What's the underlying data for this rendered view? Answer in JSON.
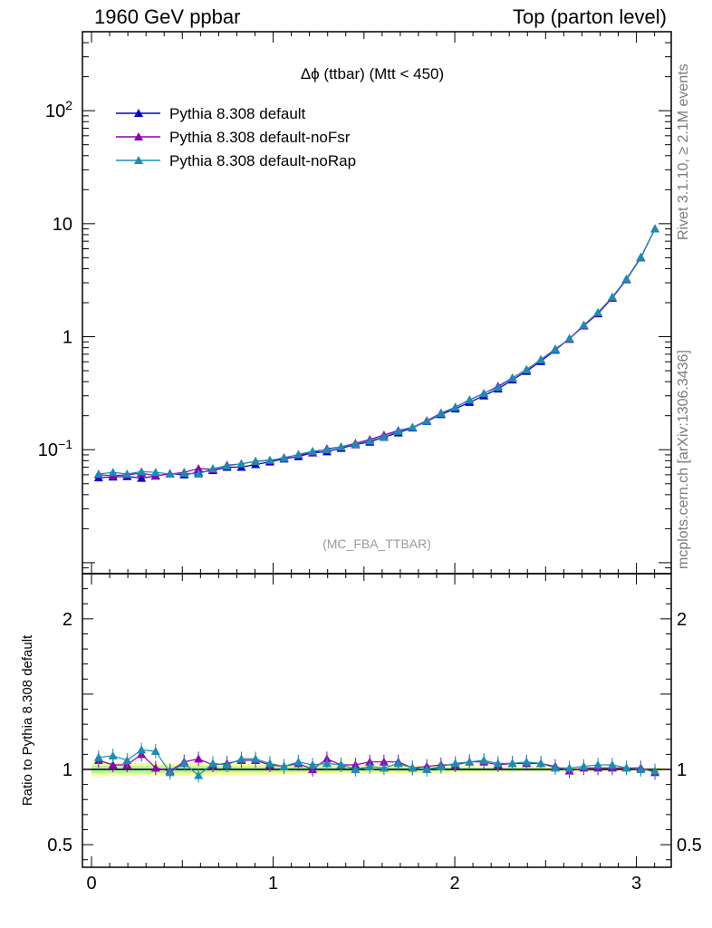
{
  "header": {
    "left": "1960 GeV ppbar",
    "right": "Top (parton level)"
  },
  "side": {
    "rivet": "Rivet 3.1.10, ≥ 2.1M events",
    "mcplots": "mcplots.cern.ch [arXiv:1306.3436]"
  },
  "chart_data": {
    "type": "line",
    "title": "Δϕ (ttbar) (Mtt < 450)",
    "watermark": "(MC_FBA_TTBAR)",
    "ratio_ylabel": "Ratio to Pythia 8.308 default",
    "x": [
      0.039,
      0.118,
      0.196,
      0.275,
      0.353,
      0.432,
      0.51,
      0.589,
      0.668,
      0.746,
      0.825,
      0.903,
      0.982,
      1.06,
      1.139,
      1.217,
      1.296,
      1.374,
      1.453,
      1.532,
      1.61,
      1.689,
      1.767,
      1.846,
      1.924,
      2.003,
      2.081,
      2.16,
      2.238,
      2.317,
      2.395,
      2.474,
      2.553,
      2.631,
      2.71,
      2.788,
      2.867,
      2.945,
      3.024,
      3.102
    ],
    "xlim": [
      -0.05,
      3.1916
    ],
    "ylim": [
      0.008,
      500
    ],
    "yscale": "log",
    "ratio_ylim": [
      0.35,
      2.3
    ],
    "x_ticks": [
      "0",
      "1",
      "2",
      "3"
    ],
    "y_ticks": [
      {
        "base": "10",
        "exp": "−1",
        "v": 0.1
      },
      {
        "base": "1",
        "exp": "",
        "v": 1
      },
      {
        "base": "10",
        "exp": "",
        "v": 10
      },
      {
        "base": "10",
        "exp": "2",
        "v": 100
      }
    ],
    "ratio_ticks": [
      "0.5",
      "1",
      "2"
    ],
    "series": [
      {
        "name": "Pythia 8.308 default",
        "color": "#0000cc",
        "values": [
          0.0565,
          0.0575,
          0.058,
          0.056,
          0.0585,
          0.0615,
          0.06,
          0.063,
          0.0655,
          0.07,
          0.07,
          0.074,
          0.078,
          0.083,
          0.087,
          0.094,
          0.096,
          0.103,
          0.111,
          0.117,
          0.129,
          0.141,
          0.156,
          0.178,
          0.205,
          0.23,
          0.263,
          0.3,
          0.345,
          0.415,
          0.495,
          0.605,
          0.76,
          0.96,
          1.25,
          1.6,
          2.2,
          3.2,
          5.0,
          9.0
        ],
        "ratio": [
          1.0,
          1.0,
          1.0,
          1.0,
          1.0,
          1.0,
          1.0,
          1.0,
          1.0,
          1.0,
          1.0,
          1.0,
          1.0,
          1.0,
          1.0,
          1.0,
          1.0,
          1.0,
          1.0,
          1.0,
          1.0,
          1.0,
          1.0,
          1.0,
          1.0,
          1.0,
          1.0,
          1.0,
          1.0,
          1.0,
          1.0,
          1.0,
          1.0,
          1.0,
          1.0,
          1.0,
          1.0,
          1.0,
          1.0,
          1.0
        ]
      },
      {
        "name": "Pythia 8.308 default-noFsr",
        "color": "#8b00b2",
        "values": [
          0.06,
          0.059,
          0.06,
          0.062,
          0.059,
          0.061,
          0.063,
          0.068,
          0.067,
          0.073,
          0.075,
          0.079,
          0.08,
          0.085,
          0.09,
          0.094,
          0.102,
          0.106,
          0.114,
          0.123,
          0.135,
          0.148,
          0.158,
          0.181,
          0.211,
          0.238,
          0.276,
          0.315,
          0.365,
          0.432,
          0.512,
          0.628,
          0.778,
          0.95,
          1.26,
          1.62,
          2.23,
          3.23,
          5.05,
          9.0
        ],
        "ratio": [
          1.06,
          1.03,
          1.03,
          1.1,
          1.01,
          0.99,
          1.05,
          1.07,
          1.03,
          1.04,
          1.06,
          1.06,
          1.03,
          1.02,
          1.04,
          1.0,
          1.07,
          1.03,
          1.03,
          1.05,
          1.05,
          1.05,
          1.01,
          1.02,
          1.03,
          1.03,
          1.05,
          1.05,
          1.03,
          1.04,
          1.04,
          1.04,
          1.02,
          0.99,
          1.01,
          1.01,
          1.01,
          1.01,
          1.01,
          0.98
        ]
      },
      {
        "name": "Pythia 8.308 default-noRap",
        "color": "#1c8db0",
        "values": [
          0.061,
          0.063,
          0.061,
          0.064,
          0.063,
          0.061,
          0.062,
          0.061,
          0.068,
          0.072,
          0.075,
          0.079,
          0.081,
          0.084,
          0.091,
          0.097,
          0.1,
          0.106,
          0.112,
          0.12,
          0.13,
          0.146,
          0.158,
          0.179,
          0.209,
          0.237,
          0.275,
          0.315,
          0.357,
          0.43,
          0.51,
          0.625,
          0.77,
          0.965,
          1.27,
          1.64,
          2.25,
          3.25,
          5.05,
          9.0
        ],
        "ratio": [
          1.08,
          1.09,
          1.06,
          1.13,
          1.12,
          0.98,
          1.04,
          0.96,
          1.04,
          1.03,
          1.07,
          1.07,
          1.04,
          1.02,
          1.05,
          1.03,
          1.04,
          1.03,
          1.0,
          1.02,
          1.01,
          1.04,
          1.01,
          1.0,
          1.02,
          1.04,
          1.05,
          1.06,
          1.04,
          1.04,
          1.05,
          1.04,
          1.01,
          1.01,
          1.02,
          1.03,
          1.03,
          1.01,
          1.0,
          0.99
        ]
      }
    ],
    "band_colors": [
      "#fdfd8c",
      "#b2f5a0"
    ]
  }
}
